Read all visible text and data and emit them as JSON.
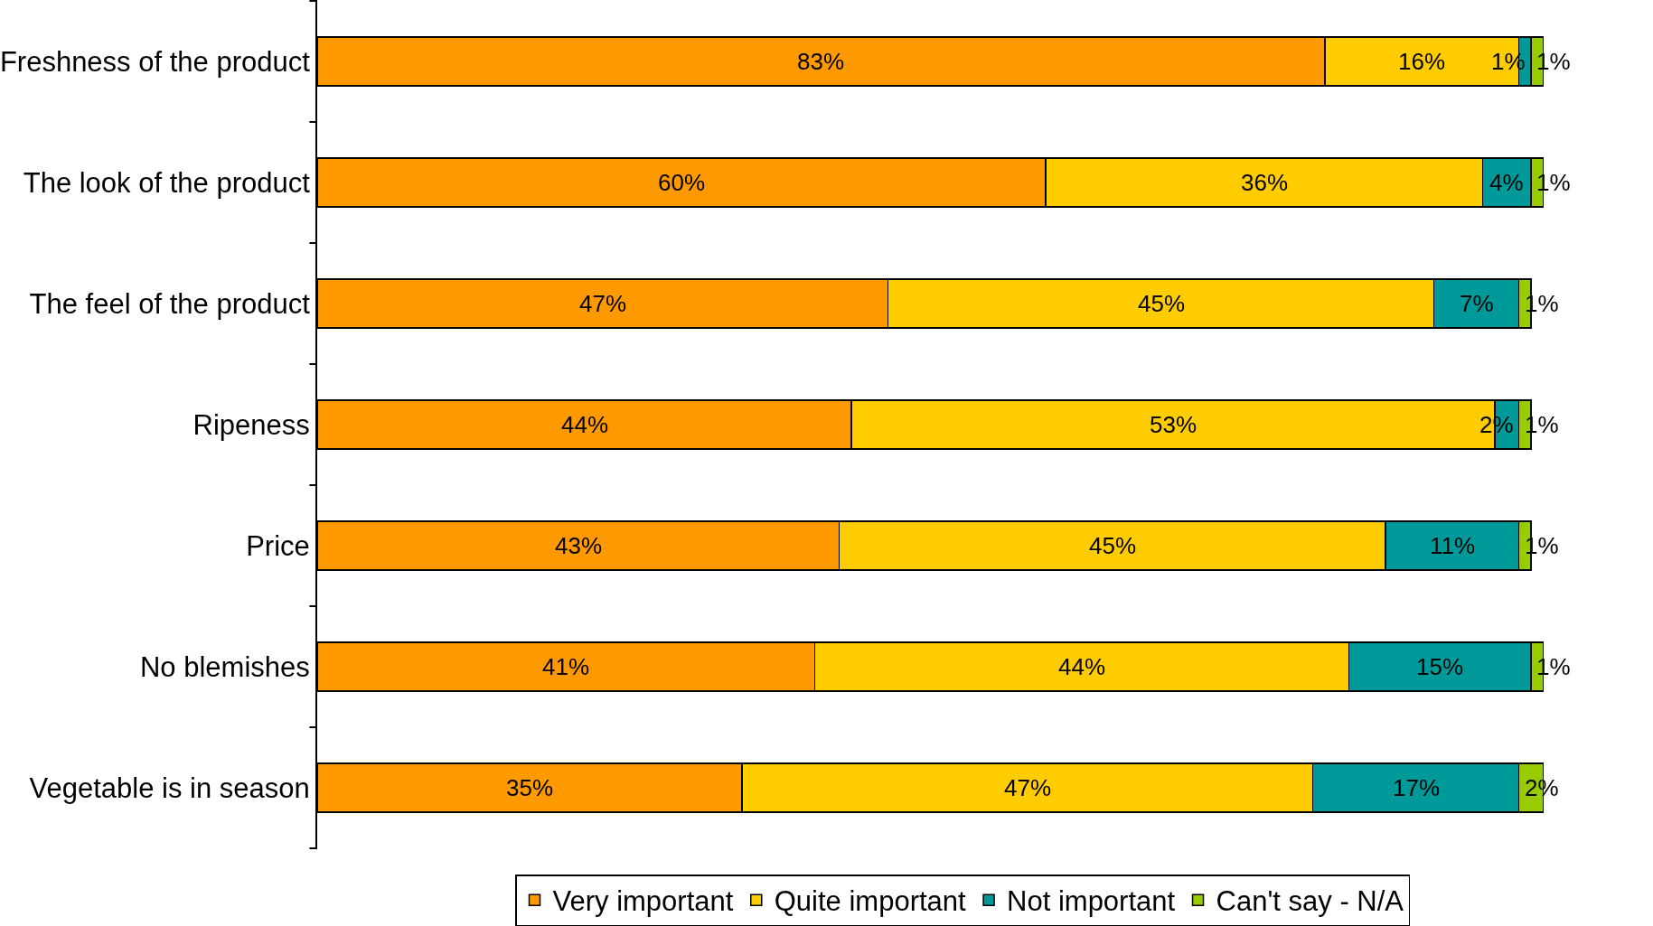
{
  "chart_data": {
    "type": "bar",
    "orientation": "horizontal",
    "stacked": true,
    "legend": "bottom",
    "grid": false,
    "categories": [
      "Freshness of the product",
      "The look of the product",
      "The feel of the product",
      "Ripeness",
      "Price",
      "No blemishes",
      "Vegetable is in season"
    ],
    "series": [
      {
        "name": "Very important",
        "color": "#ff9900",
        "values": [
          83,
          60,
          47,
          44,
          43,
          41,
          35
        ],
        "value_labels": [
          "83%",
          "60%",
          "47%",
          "44%",
          "43%",
          "41%",
          "35%"
        ]
      },
      {
        "name": "Quite important",
        "color": "#ffcc00",
        "values": [
          16,
          36,
          45,
          53,
          45,
          44,
          47
        ],
        "value_labels": [
          "16%",
          "36%",
          "45%",
          "53%",
          "45%",
          "44%",
          "47%"
        ]
      },
      {
        "name": "Not important",
        "color": "#009999",
        "values": [
          1,
          4,
          7,
          2,
          11,
          15,
          17
        ],
        "value_labels": [
          "1%",
          "4%",
          "7%",
          "2%",
          "11%",
          "15%",
          "17%"
        ]
      },
      {
        "name": "Can't say - N/A",
        "color": "#99cc00",
        "values": [
          1,
          1,
          1,
          1,
          1,
          1,
          2
        ],
        "value_labels": [
          "1%",
          "1%",
          "1%",
          "1%",
          "1%",
          "1%",
          "2%"
        ]
      }
    ]
  }
}
